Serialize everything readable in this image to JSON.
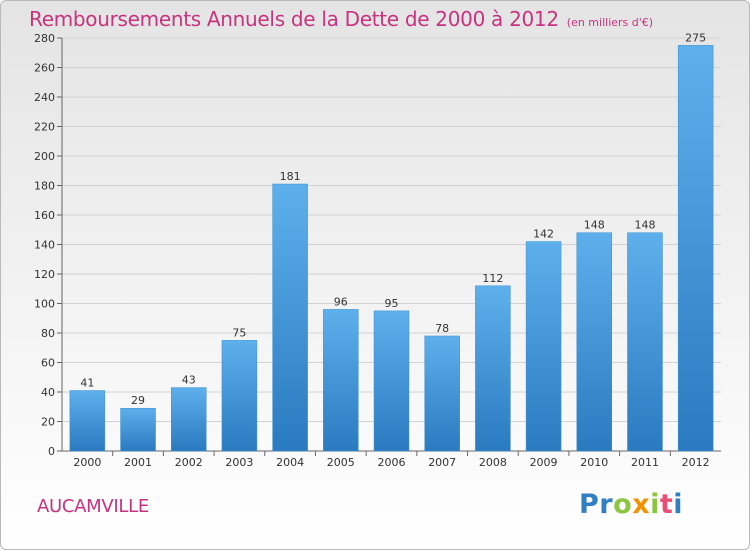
{
  "title": "Remboursements Annuels de la Dette de 2000 à 2012",
  "subtitle": "(en milliers d'€)",
  "city": "AUCAMVILLE",
  "logo": {
    "letters": [
      {
        "ch": "P",
        "color": "#2f7fc1"
      },
      {
        "ch": "r",
        "color": "#2f7fc1"
      },
      {
        "ch": "o",
        "color": "#8cc63f"
      },
      {
        "ch": "x",
        "color": "#f39200"
      },
      {
        "ch": "i",
        "color": "#8cc63f"
      },
      {
        "ch": "t",
        "color": "#e94e77"
      },
      {
        "ch": "i",
        "color": "#2f7fc1"
      }
    ]
  },
  "colors": {
    "bar_top": "#5eb0ec",
    "bar_bottom": "#2a7ac0",
    "text_accent": "#c8327f"
  },
  "chart_data": {
    "type": "bar",
    "categories": [
      "2000",
      "2001",
      "2002",
      "2003",
      "2004",
      "2005",
      "2006",
      "2007",
      "2008",
      "2009",
      "2010",
      "2011",
      "2012"
    ],
    "values": [
      41,
      29,
      43,
      75,
      181,
      96,
      95,
      78,
      112,
      142,
      148,
      148,
      275
    ],
    "data_labels": [
      "41",
      "29",
      "43",
      "75",
      "181",
      "96",
      "95",
      "78",
      "112",
      "142",
      "148",
      "148",
      "275"
    ],
    "ylim": [
      0,
      280
    ],
    "yticks": [
      0,
      20,
      40,
      60,
      80,
      100,
      120,
      140,
      160,
      180,
      200,
      220,
      240,
      260,
      280
    ],
    "grid": true,
    "legend": "none"
  }
}
